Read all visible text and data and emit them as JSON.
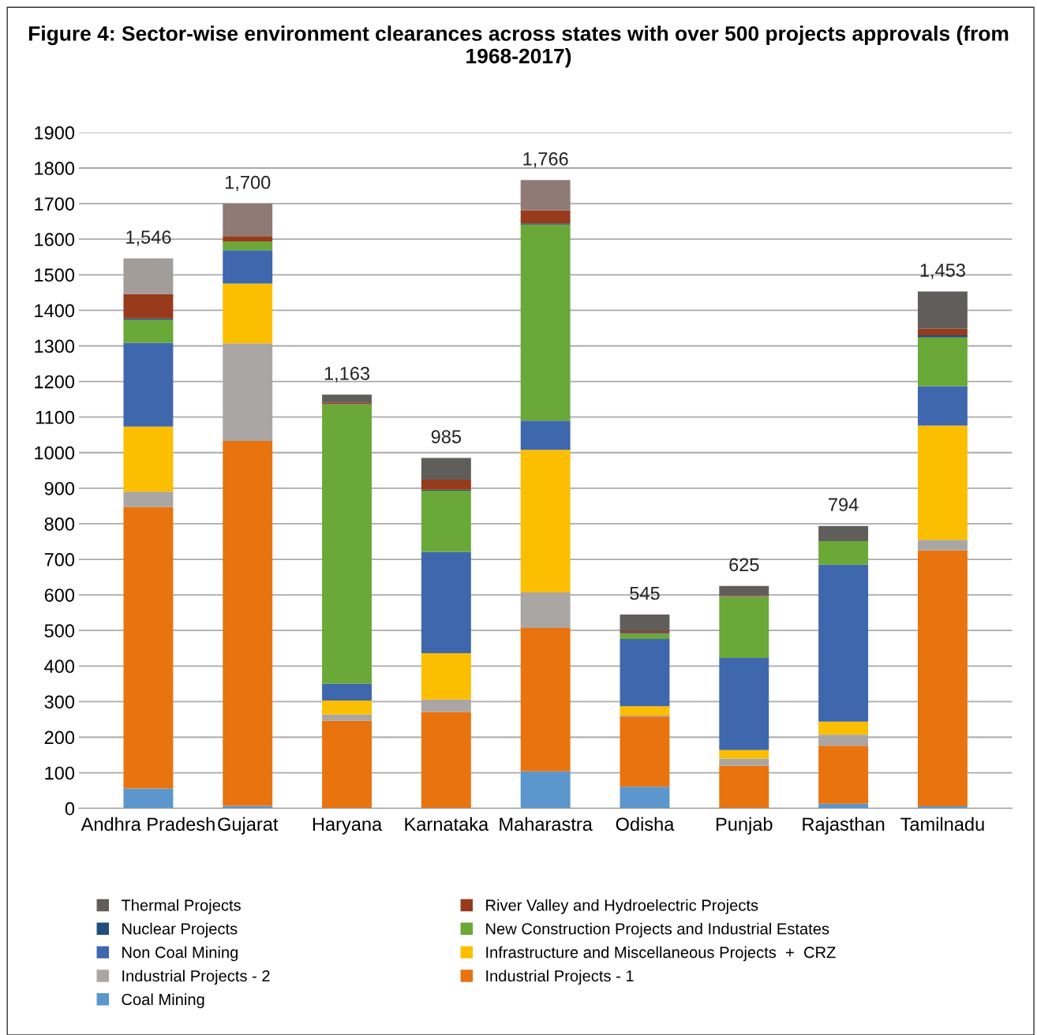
{
  "chart_data": {
    "type": "bar",
    "stacked": true,
    "title": "Figure 4: Sector-wise environment clearances across states with over 500 projects approvals (from 1968-2017)",
    "categories": [
      "Andhra Pradesh",
      "Gujarat",
      "Haryana",
      "Karnataka",
      "Maharastra",
      "Odisha",
      "Punjab",
      "Rajasthan",
      "Tamilnadu"
    ],
    "series": [
      {
        "name": "Coal Mining",
        "color": "#5b96cc",
        "values": [
          56,
          7,
          0,
          0,
          104,
          61,
          0,
          13,
          6
        ]
      },
      {
        "name": "Industrial Projects - 1",
        "color": "#e8730f",
        "values": [
          791,
          1026,
          246,
          271,
          403,
          197,
          120,
          163,
          719
        ]
      },
      {
        "name": "Industrial Projects - 2",
        "color": "#aaa6a3",
        "values": [
          43,
          274,
          18,
          35,
          100,
          3,
          20,
          31,
          30
        ]
      },
      {
        "name": "Infrastructure and Miscellaneous Projects  +  CRZ",
        "color": "#fbbe00",
        "values": [
          183,
          168,
          39,
          130,
          401,
          26,
          24,
          37,
          321
        ]
      },
      {
        "name": "Non Coal Mining",
        "color": "#3f67ad",
        "values": [
          236,
          94,
          47,
          285,
          82,
          189,
          259,
          441,
          111
        ]
      },
      {
        "name": "New Construction Projects and Industrial Estates",
        "color": "#6aa837",
        "values": [
          64,
          24,
          786,
          172,
          551,
          15,
          172,
          66,
          137
        ]
      },
      {
        "name": "Nuclear Projects",
        "color": "#1f4e79",
        "values": [
          4,
          0,
          0,
          3,
          3,
          2,
          0,
          0,
          6
        ]
      },
      {
        "name": "River Valley and Hydroelectric Projects",
        "color": "#973b1c",
        "values": [
          69,
          16,
          4,
          28,
          37,
          5,
          2,
          0,
          18
        ]
      },
      {
        "name": "Thermal Projects",
        "color": "#5f5e5a",
        "colors": [
          "#a29d99",
          "#8f7a76",
          "#5f5e5a",
          "#5f5e5a",
          "#8f7a76",
          "#5f5e5a",
          "#5f5e5a",
          "#5f5e5a",
          "#5f5e5a"
        ],
        "values": [
          100,
          91,
          23,
          61,
          85,
          47,
          28,
          43,
          105
        ]
      }
    ],
    "totals": [
      "1,546",
      "1,700",
      "1,163",
      "985",
      "1,766",
      "545",
      "625",
      "794",
      "1,453"
    ],
    "ylim": [
      0,
      1900
    ],
    "yticks": [
      0,
      100,
      200,
      300,
      400,
      500,
      600,
      700,
      800,
      900,
      1000,
      1100,
      1200,
      1300,
      1400,
      1500,
      1600,
      1700,
      1800,
      1900
    ],
    "grid": "y",
    "legend": "bottom"
  }
}
